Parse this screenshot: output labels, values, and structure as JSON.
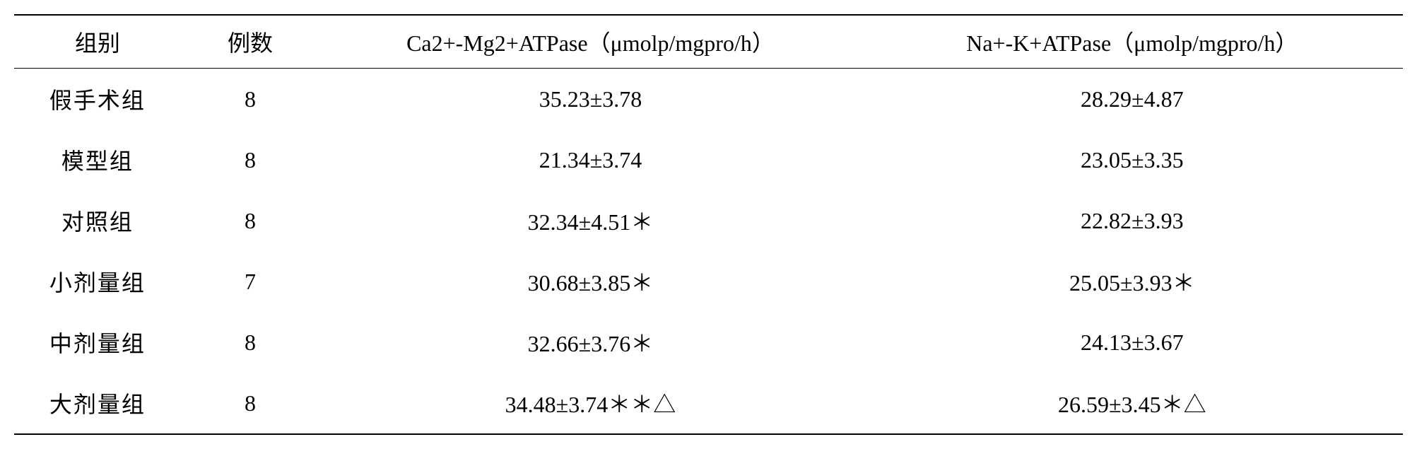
{
  "table": {
    "columns": {
      "group": "组别",
      "count": "例数",
      "caMgATPase": "Ca2+-Mg2+ATPase（μmolp/mgpro/h）",
      "naKATPase": "Na+-K+ATPase（μmolp/mgpro/h）"
    },
    "rows": [
      {
        "group": "假手术组",
        "count": "8",
        "caMgATPase": "35.23±3.78",
        "naKATPase": "28.29±4.87"
      },
      {
        "group": "模型组",
        "count": "8",
        "caMgATPase": "21.34±3.74",
        "naKATPase": "23.05±3.35"
      },
      {
        "group": "对照组",
        "count": "8",
        "caMgATPase": "32.34±4.51＊",
        "naKATPase": "22.82±3.93"
      },
      {
        "group": "小剂量组",
        "count": "7",
        "caMgATPase": "30.68±3.85＊",
        "naKATPase": "25.05±3.93＊"
      },
      {
        "group": "中剂量组",
        "count": "8",
        "caMgATPase": "32.66±3.76＊",
        "naKATPase": "24.13±3.67"
      },
      {
        "group": "大剂量组",
        "count": "8",
        "caMgATPase": "34.48±3.74＊＊△",
        "naKATPase": "26.59±3.45＊△"
      }
    ],
    "styling": {
      "type": "table",
      "background_color": "#ffffff",
      "text_color": "#000000",
      "border_color": "#000000",
      "font_family": "SimSun, Times New Roman, serif",
      "font_size": 32,
      "header_border_top_width": 2,
      "header_border_bottom_width": 1.5,
      "body_border_bottom_width": 2,
      "cell_padding_vertical": 20,
      "cell_padding_horizontal": 8,
      "column_widths": [
        "12%",
        "10%",
        "39%",
        "39%"
      ],
      "text_align": "center"
    }
  }
}
